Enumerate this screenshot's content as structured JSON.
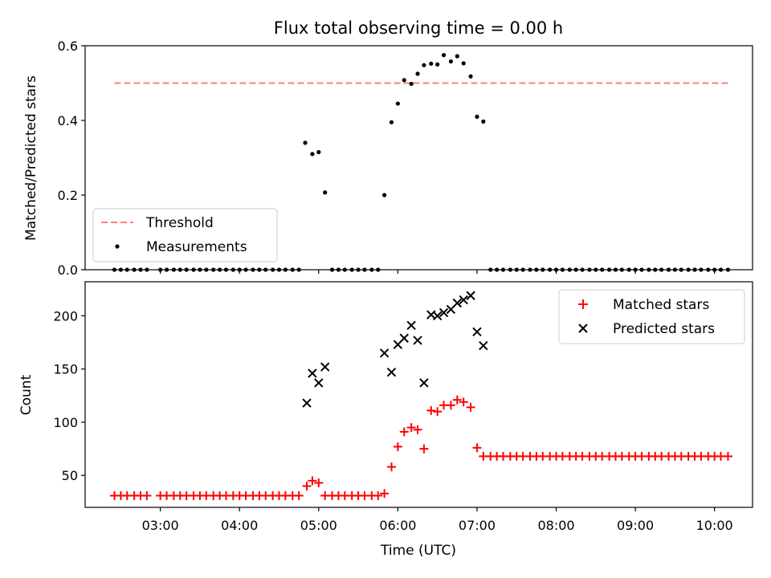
{
  "chart_data": {
    "type": "scatter",
    "title": "Flux total observing time = 0.00 h",
    "xlabel": "Time (UTC)",
    "x_tick_labels": [
      "03:00",
      "04:00",
      "05:00",
      "06:00",
      "07:00",
      "08:00",
      "09:00",
      "10:00"
    ],
    "x_ticks_hours": [
      3,
      4,
      5,
      6,
      7,
      8,
      9,
      10
    ],
    "xlim_hours": [
      2.05,
      10.48
    ],
    "panels": [
      {
        "ylabel": "Matched/Predicted stars",
        "ylim": [
          0,
          0.6
        ],
        "y_ticks": [
          0,
          0.2,
          0.4,
          0.6
        ],
        "y_tick_labels": [
          "0.0",
          "0.2",
          "0.4",
          "0.6"
        ],
        "legend": {
          "position": "lower-left",
          "entries": [
            "Threshold",
            "Measurements"
          ]
        },
        "threshold": {
          "name": "Threshold",
          "value": 0.5,
          "x_range_hours": [
            2.42,
            10.18
          ],
          "color": "#ff7f7f"
        },
        "series": [
          {
            "name": "Measurements",
            "marker": "dot",
            "color": "#000000",
            "x_hours": [
              2.42,
              2.5,
              2.58,
              2.67,
              2.75,
              2.83,
              3.0,
              3.08,
              3.17,
              3.25,
              3.33,
              3.42,
              3.5,
              3.58,
              3.67,
              3.75,
              3.83,
              3.92,
              4.0,
              4.08,
              4.17,
              4.25,
              4.33,
              4.42,
              4.5,
              4.58,
              4.67,
              4.75,
              4.83,
              4.92,
              5.0,
              5.08,
              5.17,
              5.25,
              5.33,
              5.42,
              5.5,
              5.58,
              5.67,
              5.75,
              5.83,
              5.92,
              6.0,
              6.08,
              6.17,
              6.25,
              6.33,
              6.42,
              6.5,
              6.58,
              6.67,
              6.75,
              6.83,
              6.92,
              7.0,
              7.08,
              7.17,
              7.25,
              7.33,
              7.42,
              7.5,
              7.58,
              7.67,
              7.75,
              7.83,
              7.92,
              8.0,
              8.08,
              8.17,
              8.25,
              8.33,
              8.42,
              8.5,
              8.58,
              8.67,
              8.75,
              8.83,
              8.92,
              9.0,
              9.08,
              9.17,
              9.25,
              9.33,
              9.42,
              9.5,
              9.58,
              9.67,
              9.75,
              9.83,
              9.92,
              10.0,
              10.08,
              10.17
            ],
            "y": [
              0,
              0,
              0,
              0,
              0,
              0,
              0,
              0,
              0,
              0,
              0,
              0,
              0,
              0,
              0,
              0,
              0,
              0,
              0,
              0,
              0,
              0,
              0,
              0,
              0,
              0,
              0,
              0,
              0.34,
              0.31,
              0.315,
              0.207,
              0,
              0,
              0,
              0,
              0,
              0,
              0,
              0,
              0.2,
              0.395,
              0.445,
              0.508,
              0.498,
              0.525,
              0.548,
              0.552,
              0.55,
              0.575,
              0.558,
              0.572,
              0.553,
              0.518,
              0.41,
              0.397,
              0,
              0,
              0,
              0,
              0,
              0,
              0,
              0,
              0,
              0,
              0,
              0,
              0,
              0,
              0,
              0,
              0,
              0,
              0,
              0,
              0,
              0,
              0,
              0,
              0,
              0,
              0,
              0,
              0,
              0,
              0,
              0,
              0,
              0,
              0,
              0,
              0
            ]
          }
        ]
      },
      {
        "ylabel": "Count",
        "ylim": [
          20,
          232
        ],
        "y_ticks": [
          50,
          100,
          150,
          200
        ],
        "y_tick_labels": [
          "50",
          "100",
          "150",
          "200"
        ],
        "legend": {
          "position": "top-right",
          "entries": [
            "Matched stars",
            "Predicted stars"
          ]
        },
        "series": [
          {
            "name": "Matched stars",
            "marker": "plus",
            "color": "#ff0000",
            "x_hours": [
              2.42,
              2.5,
              2.58,
              2.67,
              2.75,
              2.83,
              3.0,
              3.08,
              3.17,
              3.25,
              3.33,
              3.42,
              3.5,
              3.58,
              3.67,
              3.75,
              3.83,
              3.92,
              4.0,
              4.08,
              4.17,
              4.25,
              4.33,
              4.42,
              4.5,
              4.58,
              4.67,
              4.75,
              4.85,
              4.92,
              5.0,
              5.08,
              5.17,
              5.25,
              5.33,
              5.42,
              5.5,
              5.58,
              5.67,
              5.75,
              5.83,
              5.92,
              6.0,
              6.08,
              6.17,
              6.25,
              6.33,
              6.42,
              6.5,
              6.58,
              6.67,
              6.75,
              6.83,
              6.92,
              7.0,
              7.08,
              7.17,
              7.25,
              7.33,
              7.42,
              7.5,
              7.58,
              7.67,
              7.75,
              7.83,
              7.92,
              8.0,
              8.08,
              8.17,
              8.25,
              8.33,
              8.42,
              8.5,
              8.58,
              8.67,
              8.75,
              8.83,
              8.92,
              9.0,
              9.08,
              9.17,
              9.25,
              9.33,
              9.42,
              9.5,
              9.58,
              9.67,
              9.75,
              9.83,
              9.92,
              10.0,
              10.08,
              10.17
            ],
            "y": [
              31,
              31,
              31,
              31,
              31,
              31,
              31,
              31,
              31,
              31,
              31,
              31,
              31,
              31,
              31,
              31,
              31,
              31,
              31,
              31,
              31,
              31,
              31,
              31,
              31,
              31,
              31,
              31,
              40,
              45,
              43,
              31,
              31,
              31,
              31,
              31,
              31,
              31,
              31,
              31,
              33,
              58,
              77,
              91,
              95,
              93,
              75,
              111,
              110,
              116,
              116,
              121,
              119,
              114,
              76,
              68,
              68,
              68,
              68,
              68,
              68,
              68,
              68,
              68,
              68,
              68,
              68,
              68,
              68,
              68,
              68,
              68,
              68,
              68,
              68,
              68,
              68,
              68,
              68,
              68,
              68,
              68,
              68,
              68,
              68,
              68,
              68,
              68,
              68,
              68,
              68,
              68,
              68
            ]
          },
          {
            "name": "Predicted stars",
            "marker": "x",
            "color": "#000000",
            "x_hours": [
              4.85,
              4.92,
              5.0,
              5.08,
              5.83,
              5.92,
              6.0,
              6.08,
              6.17,
              6.25,
              6.33,
              6.42,
              6.5,
              6.58,
              6.67,
              6.75,
              6.83,
              6.92,
              7.0,
              7.08
            ],
            "y": [
              118,
              146,
              137,
              152,
              165,
              147,
              173,
              179,
              191,
              177,
              137,
              201,
              200,
              203,
              206,
              212,
              215,
              219,
              185,
              172
            ]
          }
        ]
      }
    ]
  }
}
